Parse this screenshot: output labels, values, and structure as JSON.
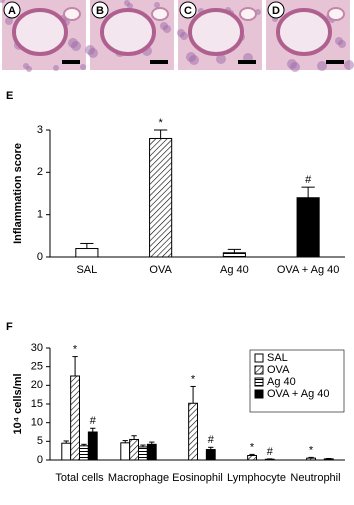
{
  "image_panels": [
    "A",
    "B",
    "C",
    "D"
  ],
  "chart_data": [
    {
      "type": "bar",
      "panel": "E",
      "y_label": "Inflammation score",
      "categories": [
        "SAL",
        "OVA",
        "Ag 40",
        "OVA + Ag 40"
      ],
      "series": [
        {
          "color": "#000000",
          "patterns": [
            "none",
            "diagonal",
            "horizontal",
            "solid"
          ],
          "values": [
            0.2,
            2.8,
            0.1,
            1.4
          ],
          "errors": [
            0.12,
            0.2,
            0.08,
            0.25
          ]
        }
      ],
      "annotations": [
        {
          "text": "*",
          "series": 0,
          "category": 1
        },
        {
          "text": "#",
          "series": 0,
          "category": 3
        }
      ],
      "ylim": [
        0,
        3
      ],
      "yticks": [
        0,
        1,
        2,
        3
      ],
      "grid": false,
      "legend": false
    },
    {
      "type": "bar",
      "panel": "F",
      "y_label": "10⁴ cells/ml",
      "categories": [
        "Total cells",
        "Macrophage",
        "Eosinophil",
        "Lymphocyte",
        "Neutrophil"
      ],
      "series": [
        {
          "name": "SAL",
          "color": "#000000",
          "pattern": "none",
          "values": [
            4.5,
            4.6,
            0,
            0,
            0
          ],
          "errors": [
            0.6,
            0.6,
            0,
            0,
            0
          ]
        },
        {
          "name": "OVA",
          "color": "#000000",
          "pattern": "diagonal",
          "values": [
            22.5,
            5.5,
            15.2,
            1.2,
            0.5
          ],
          "errors": [
            5.2,
            1.0,
            4.5,
            0.3,
            0.2
          ]
        },
        {
          "name": "Ag 40",
          "color": "#000000",
          "pattern": "horizontal",
          "values": [
            3.8,
            3.5,
            0,
            0,
            0
          ],
          "errors": [
            0.4,
            0.5,
            0,
            0,
            0
          ]
        },
        {
          "name": "OVA + Ag 40",
          "color": "#000000",
          "pattern": "solid",
          "values": [
            7.5,
            4.2,
            2.8,
            0.2,
            0.3
          ],
          "errors": [
            1.0,
            0.6,
            0.6,
            0.1,
            0.1
          ]
        }
      ],
      "annotations": [
        {
          "text": "*",
          "series": 1,
          "category": 0
        },
        {
          "text": "#",
          "series": 3,
          "category": 0
        },
        {
          "text": "*",
          "series": 1,
          "category": 2
        },
        {
          "text": "#",
          "series": 3,
          "category": 2
        },
        {
          "text": "*",
          "series": 1,
          "category": 3
        },
        {
          "text": "#",
          "series": 3,
          "category": 3
        },
        {
          "text": "*",
          "series": 1,
          "category": 4
        }
      ],
      "ylim": [
        0,
        30
      ],
      "yticks": [
        0,
        5,
        10,
        15,
        20,
        25,
        30
      ],
      "grid": false,
      "legend": "upper right"
    }
  ]
}
